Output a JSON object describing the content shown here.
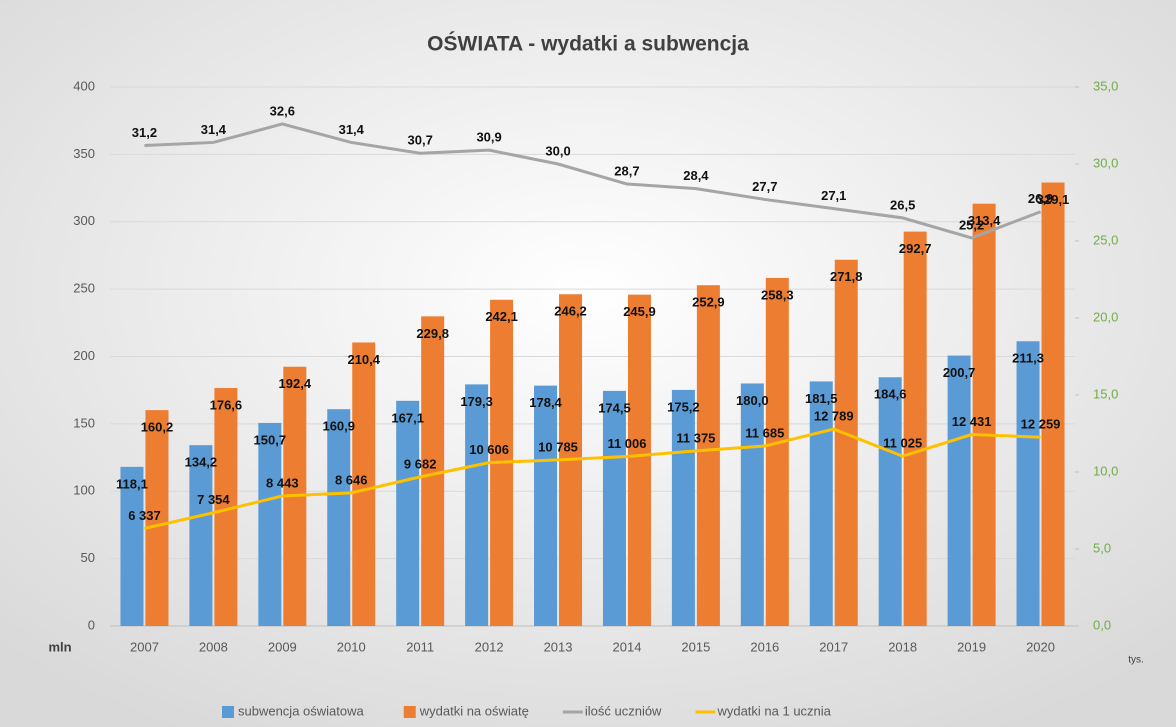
{
  "chart_data": {
    "type": "combo",
    "title": "OŚWIATA - wydatki a subwencja",
    "ylabel": "mln",
    "y2label": "tys.",
    "categories": [
      "2007",
      "2008",
      "2009",
      "2010",
      "2011",
      "2012",
      "2013",
      "2014",
      "2015",
      "2016",
      "2017",
      "2018",
      "2019",
      "2020"
    ],
    "ylim": [
      0,
      400
    ],
    "yticks": [
      0,
      50,
      100,
      150,
      200,
      250,
      300,
      350,
      400
    ],
    "y2lim": [
      0,
      35
    ],
    "y2ticks": [
      {
        "value": 0,
        "label": "0,0"
      },
      {
        "value": 5,
        "label": "5,0"
      },
      {
        "value": 10,
        "label": "10,0"
      },
      {
        "value": 15,
        "label": "15,0"
      },
      {
        "value": 20,
        "label": "20,0"
      },
      {
        "value": 25,
        "label": "25,0"
      },
      {
        "value": 30,
        "label": "30,0"
      },
      {
        "value": 35,
        "label": "35,0"
      }
    ],
    "grid": true,
    "legend": "bottom",
    "series": [
      {
        "name": "subwencja oświatowa",
        "type": "bar",
        "color": "#5b9bd5",
        "values": [
          118.1,
          134.2,
          150.7,
          160.9,
          167.1,
          179.3,
          178.4,
          174.5,
          175.2,
          180.0,
          181.5,
          184.6,
          200.7,
          211.3
        ],
        "value_labels": [
          "118,1",
          "134,2",
          "150,7",
          "160,9",
          "167,1",
          "179,3",
          "178,4",
          "174,5",
          "175,2",
          "180,0",
          "181,5",
          "184,6",
          "200,7",
          "211,3"
        ]
      },
      {
        "name": "wydatki na oświatę",
        "type": "bar",
        "color": "#ed7d31",
        "values": [
          160.2,
          176.6,
          192.4,
          210.4,
          229.8,
          242.1,
          246.2,
          245.9,
          252.9,
          258.3,
          271.8,
          292.7,
          313.4,
          329.1
        ],
        "value_labels": [
          "160,2",
          "176,6",
          "192,4",
          "210,4",
          "229,8",
          "242,1",
          "246,2",
          "245,9",
          "252,9",
          "258,3",
          "271,8",
          "292,7",
          "313,4",
          "329,1"
        ]
      },
      {
        "name": "ilość uczniów",
        "type": "line",
        "axis": "y2",
        "color": "#a5a5a5",
        "values": [
          31.2,
          31.4,
          32.6,
          31.4,
          30.7,
          30.9,
          30.0,
          28.7,
          28.4,
          27.7,
          27.1,
          26.5,
          25.2,
          26.9
        ],
        "value_labels": [
          "31,2",
          "31,4",
          "32,6",
          "31,4",
          "30,7",
          "30,9",
          "30,0",
          "28,7",
          "28,4",
          "27,7",
          "27,1",
          "26,5",
          "25,2",
          "26,9"
        ]
      },
      {
        "name": "wydatki na 1 ucznia",
        "type": "line",
        "axis": "y2",
        "color": "#ffc000",
        "values": [
          6.337,
          7.354,
          8.443,
          8.646,
          9.682,
          10.606,
          10.785,
          11.006,
          11.375,
          11.685,
          12.789,
          11.025,
          12.431,
          12.259
        ],
        "value_labels": [
          "6 337",
          "7 354",
          "8 443",
          "8 646",
          "9 682",
          "10 606",
          "10 785",
          "11 006",
          "11 375",
          "11 685",
          "12 789",
          "11 025",
          "12 431",
          "12 259"
        ]
      }
    ]
  }
}
